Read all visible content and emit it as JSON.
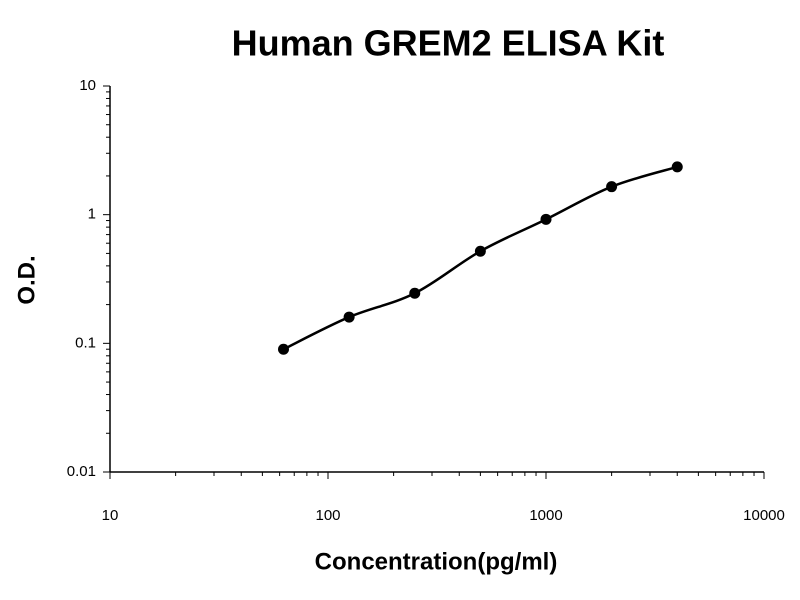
{
  "chart_data": {
    "type": "scatter",
    "title": "Human GREM2 ELISA Kit",
    "x_label": "Concentration(pg/ml)",
    "y_label": "O.D.",
    "x": [
      62.5,
      125,
      250,
      500,
      1000,
      2000,
      4000
    ],
    "values": [
      0.09,
      0.16,
      0.245,
      0.52,
      0.92,
      1.65,
      2.35
    ],
    "color": "#000000",
    "xscale": "log",
    "yscale": "log",
    "xlim": [
      10,
      10000
    ],
    "ylim": [
      0.01,
      10
    ],
    "xticks": [
      10,
      100,
      1000,
      10000
    ],
    "yticks": [
      0.01,
      0.1,
      1,
      10
    ],
    "fit_line": true
  }
}
